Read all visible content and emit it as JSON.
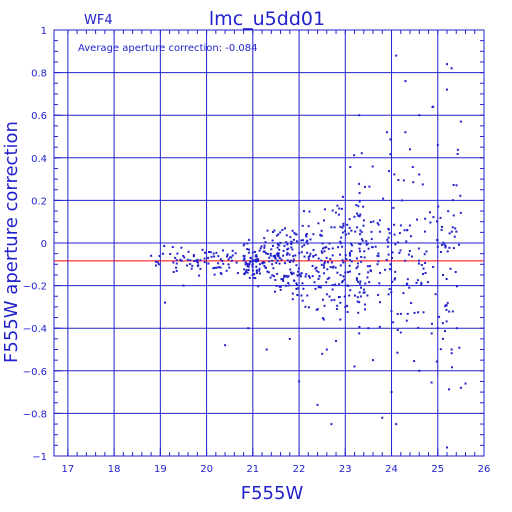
{
  "chart_data": {
    "type": "scatter",
    "title": "lmc_u5dd01",
    "chip_label": "WF4",
    "annotation": "Average aperture correction: -0.084",
    "xlabel": "F555W",
    "ylabel": "F555W aperture correction",
    "xlim": [
      16.7,
      26.0
    ],
    "ylim": [
      -1.0,
      1.0
    ],
    "x_ticks": [
      17,
      18,
      19,
      20,
      21,
      22,
      23,
      24,
      25,
      26
    ],
    "y_ticks": [
      -1,
      -0.8,
      -0.6,
      -0.4,
      -0.2,
      0,
      0.2,
      0.4,
      0.6,
      0.8,
      1
    ],
    "y_tick_labels": [
      "−1",
      "−0.8",
      "−0.6",
      "−0.4",
      "−0.2",
      "0",
      "0.2",
      "0.4",
      "0.6",
      "0.8",
      "1"
    ],
    "grid": true,
    "average_line": -0.084,
    "colors": {
      "axes": "#2222cc",
      "points": "#2222cc",
      "average_line": "#ff0000"
    },
    "points_summary": {
      "n_points": 700,
      "x_range": [
        18.8,
        25.6
      ],
      "core_y_range": [
        -0.2,
        0.0
      ]
    },
    "outliers": [
      [
        24.1,
        0.88
      ],
      [
        24.3,
        0.76
      ],
      [
        25.2,
        0.84
      ],
      [
        25.3,
        0.82
      ],
      [
        23.3,
        0.6
      ],
      [
        24.9,
        0.64
      ],
      [
        25.2,
        0.72
      ],
      [
        25.5,
        0.57
      ],
      [
        24.3,
        0.52
      ],
      [
        23.9,
        0.52
      ],
      [
        24.6,
        0.6
      ],
      [
        25.0,
        0.46
      ],
      [
        24.4,
        0.44
      ],
      [
        23.2,
        -0.58
      ],
      [
        23.6,
        -0.55
      ],
      [
        23.8,
        -0.82
      ],
      [
        24.1,
        -0.85
      ],
      [
        22.4,
        -0.76
      ],
      [
        22.7,
        -0.85
      ],
      [
        22.0,
        -0.65
      ],
      [
        22.5,
        -0.52
      ],
      [
        22.6,
        -0.5
      ],
      [
        21.3,
        -0.5
      ],
      [
        20.4,
        -0.48
      ],
      [
        25.2,
        -0.96
      ],
      [
        25.5,
        -0.68
      ],
      [
        25.6,
        -0.66
      ],
      [
        25.3,
        -0.5
      ],
      [
        25.0,
        -0.4
      ],
      [
        24.6,
        -0.6
      ],
      [
        24.2,
        -0.42
      ],
      [
        19.1,
        -0.28
      ],
      [
        19.5,
        -0.2
      ],
      [
        18.8,
        -0.06
      ],
      [
        20.9,
        -0.4
      ],
      [
        21.8,
        -0.45
      ],
      [
        23.0,
        -0.3
      ],
      [
        22.8,
        -0.46
      ],
      [
        23.5,
        -0.4
      ],
      [
        24.0,
        -0.7
      ]
    ]
  }
}
